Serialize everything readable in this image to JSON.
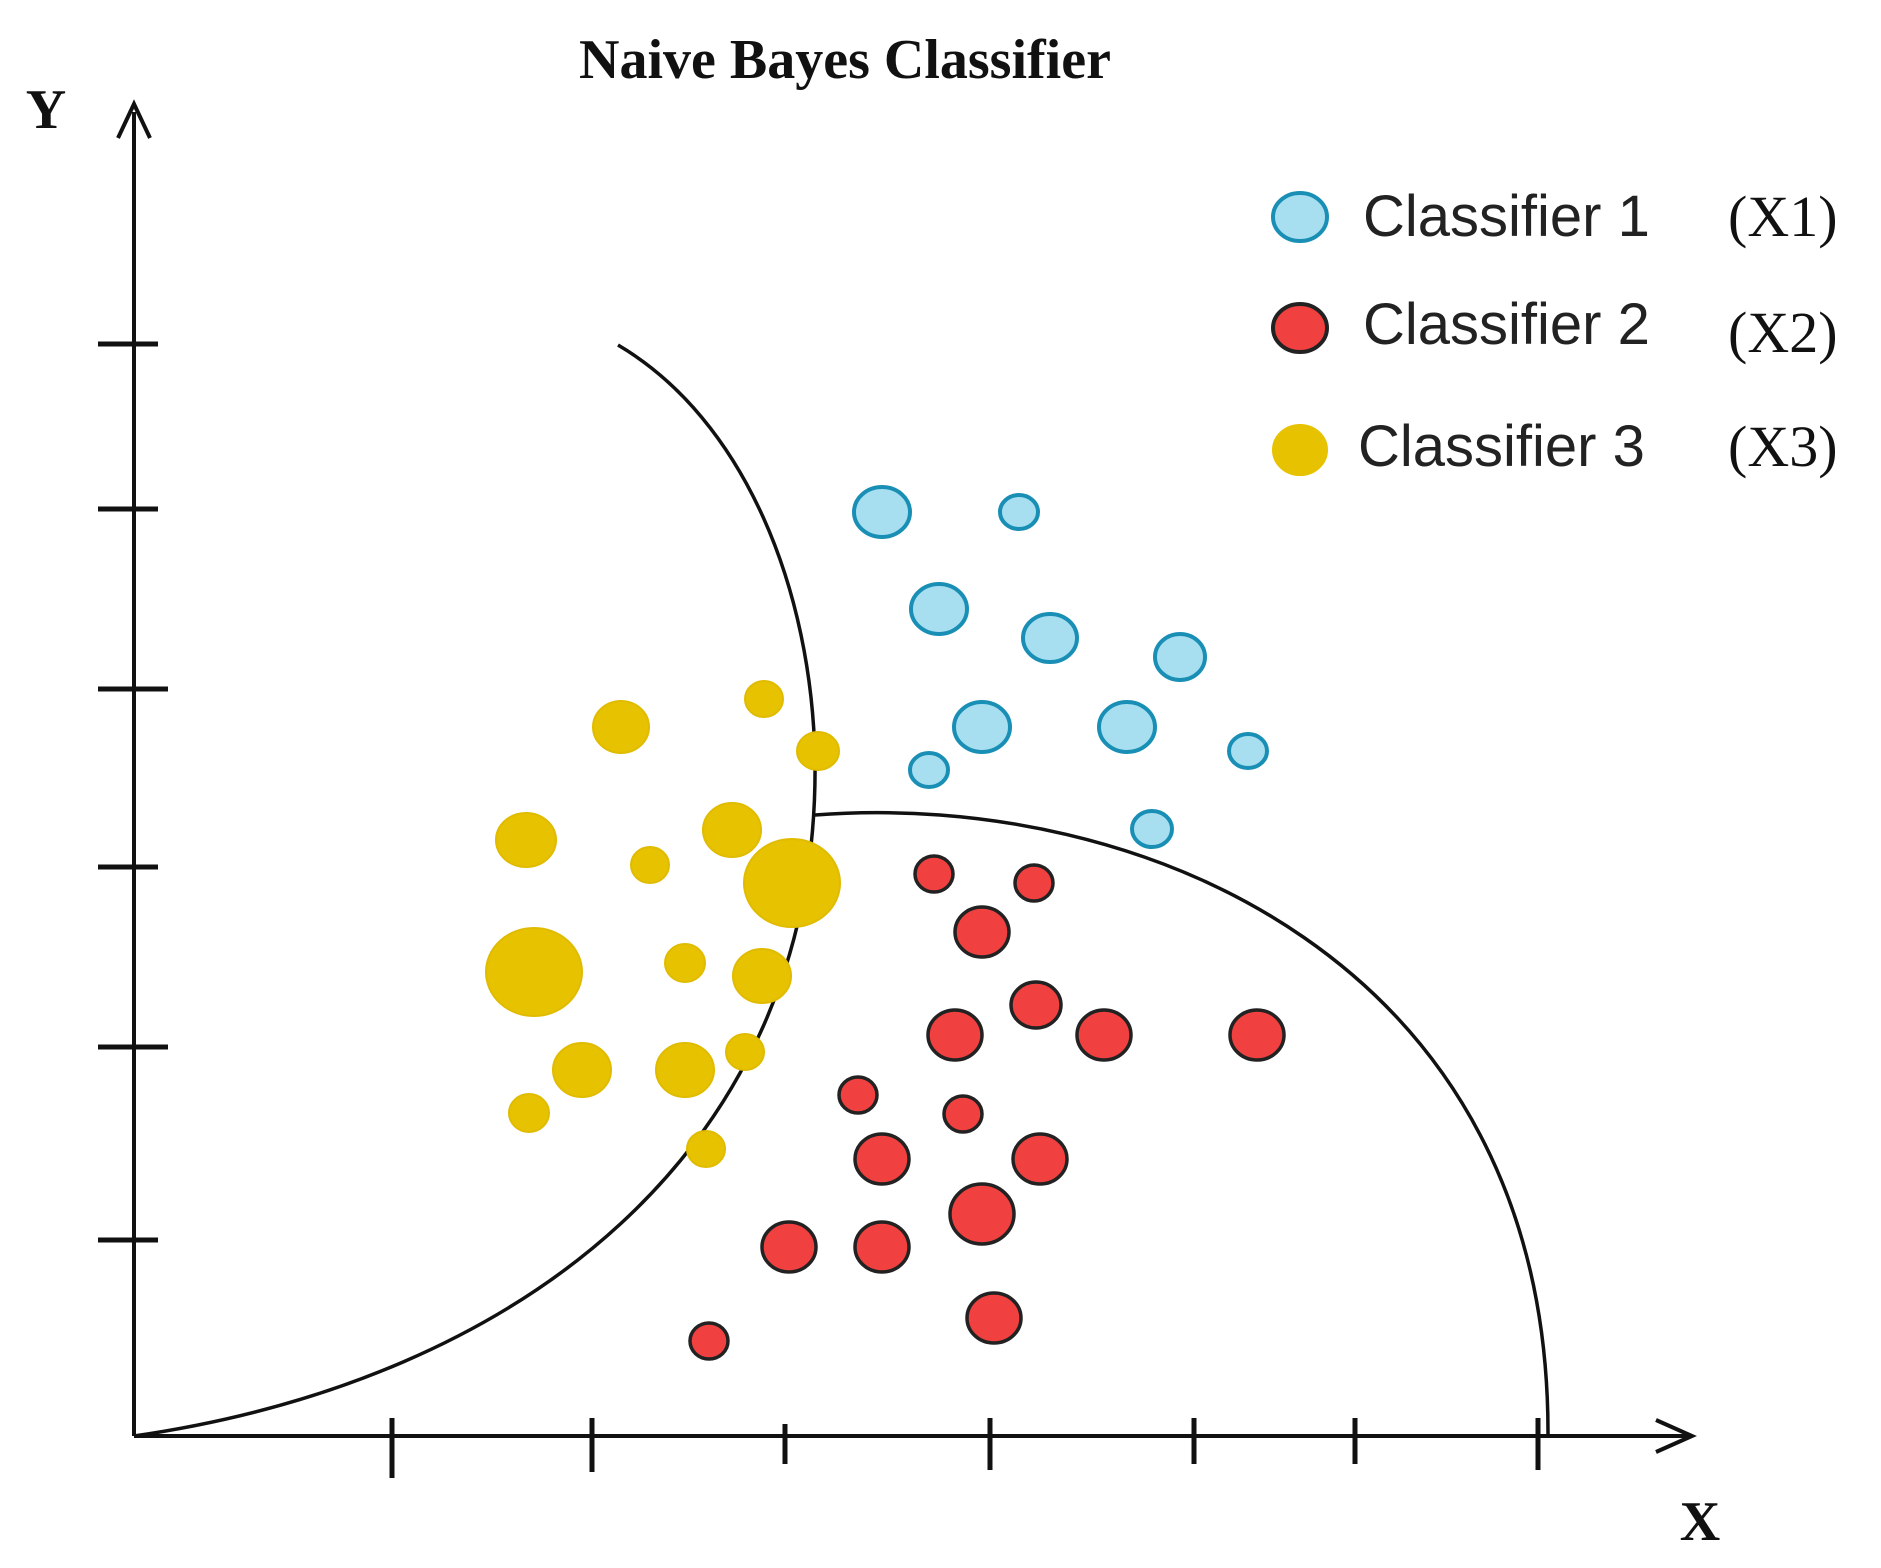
{
  "title": "Naive Bayes Classifier",
  "axes": {
    "x_label": "X",
    "y_label": "Y"
  },
  "legend": [
    {
      "label": "Classifier 1",
      "code": "(X1)",
      "fill": "#a8dff0",
      "stroke": "#1a8fb6"
    },
    {
      "label": "Classifier 2",
      "code": "(X2)",
      "fill": "#f04040",
      "stroke": "#222222"
    },
    {
      "label": "Classifier 3",
      "code": "(X3)",
      "fill": "#e6c200",
      "stroke": "#e6c200"
    }
  ]
}
